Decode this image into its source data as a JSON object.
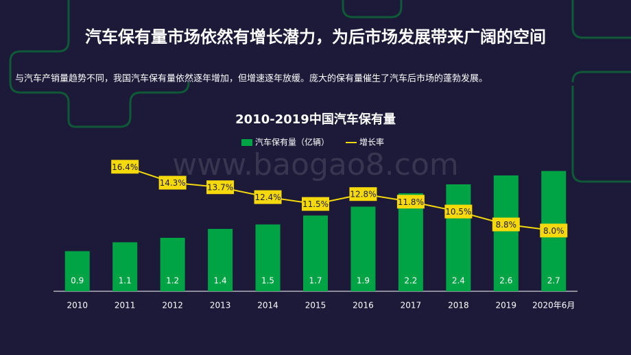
{
  "title": "汽车保有量市场依然有增长潜力，为后市场发展带来广阔的空间",
  "subtitle": "与汽车产销量趋势不同，我国汽车保有量依然逐年增加，但增速逐年放缓。庞大的保有量催生了汽车后市场的蓬勃发展。",
  "watermark": "www.baogao8.com",
  "chart_data": {
    "type": "bar",
    "title": "2010-2019中国汽车保有量",
    "categories": [
      "2010",
      "2011",
      "2012",
      "2013",
      "2014",
      "2015",
      "2016",
      "2017",
      "2018",
      "2019",
      "2020年6月"
    ],
    "series": [
      {
        "name": "汽车保有量（亿辆）",
        "type": "bar",
        "color": "#00a445",
        "values": [
          0.9,
          1.1,
          1.2,
          1.4,
          1.5,
          1.7,
          1.9,
          2.2,
          2.4,
          2.6,
          2.7
        ]
      },
      {
        "name": "增长率",
        "type": "line",
        "axis": "y2",
        "color": "#f5d90a",
        "values": [
          null,
          16.4,
          14.3,
          13.7,
          12.4,
          11.5,
          12.8,
          11.8,
          10.5,
          8.8,
          8.0
        ],
        "value_labels": [
          null,
          "16.4%",
          "14.3%",
          "13.7%",
          "12.4%",
          "11.5%",
          "12.8%",
          "11.8%",
          "10.5%",
          "8.8%",
          "8.0%"
        ]
      }
    ],
    "ylim": [
      0,
      3
    ],
    "y2lim": [
      0,
      17.6
    ],
    "legend": "top"
  }
}
